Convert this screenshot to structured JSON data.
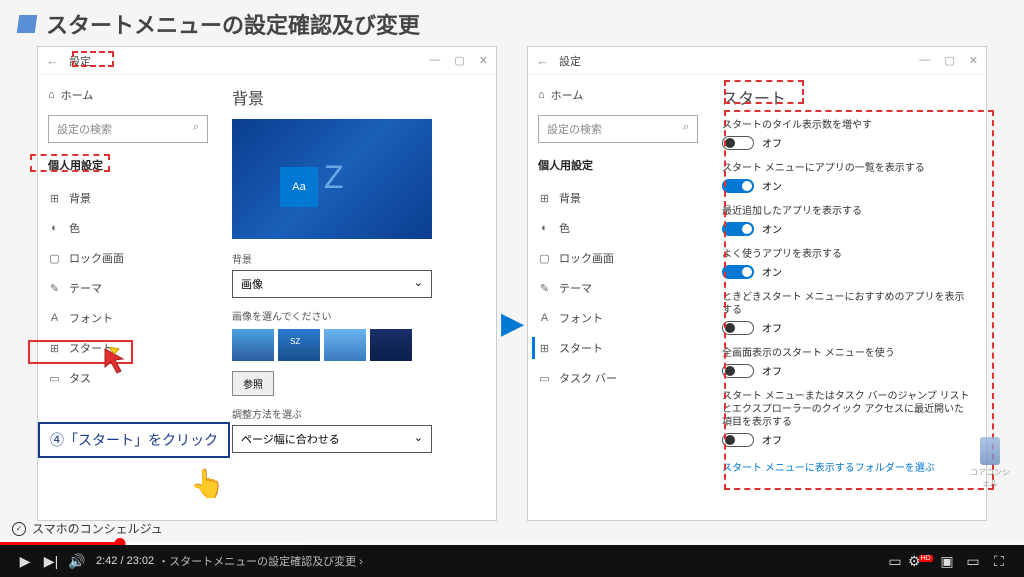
{
  "slide": {
    "title": "スタートメニューの設定確認及び変更",
    "callout_text": "④「スタート」をクリック"
  },
  "left_window": {
    "titlebar": "設定",
    "home": "ホーム",
    "search_placeholder": "設定の検索",
    "category": "個人用設定",
    "items": [
      {
        "icon": "⊞",
        "label": "背景"
      },
      {
        "icon": "◐",
        "label": "色"
      },
      {
        "icon": "▢",
        "label": "ロック画面"
      },
      {
        "icon": "✎",
        "label": "テーマ"
      },
      {
        "icon": "A",
        "label": "フォント"
      },
      {
        "icon": "⊞",
        "label": "スタート"
      },
      {
        "icon": "▭",
        "label": "タス"
      }
    ],
    "pane": {
      "title": "背景",
      "bg_label": "背景",
      "bg_value": "画像",
      "choose_label": "画像を選んでください",
      "browse": "参照",
      "adjust_label": "調整方法を選ぶ",
      "adjust_value": "ページ幅に合わせる"
    }
  },
  "right_window": {
    "titlebar": "設定",
    "home": "ホーム",
    "search_placeholder": "設定の検索",
    "category": "個人用設定",
    "items": [
      {
        "icon": "⊞",
        "label": "背景"
      },
      {
        "icon": "◐",
        "label": "色"
      },
      {
        "icon": "▢",
        "label": "ロック画面"
      },
      {
        "icon": "✎",
        "label": "テーマ"
      },
      {
        "icon": "A",
        "label": "フォント"
      },
      {
        "icon": "⊞",
        "label": "スタート"
      },
      {
        "icon": "▭",
        "label": "タスク バー"
      }
    ],
    "pane": {
      "title": "スタート",
      "toggles": [
        {
          "label": "スタートのタイル表示数を増やす",
          "state": "オフ",
          "on": false
        },
        {
          "label": "スタート メニューにアプリの一覧を表示する",
          "state": "オン",
          "on": true
        },
        {
          "label": "最近追加したアプリを表示する",
          "state": "オン",
          "on": true
        },
        {
          "label": "よく使うアプリを表示する",
          "state": "オン",
          "on": true
        },
        {
          "label": "ときどきスタート メニューにおすすめのアプリを表示する",
          "state": "オフ",
          "on": false
        },
        {
          "label": "全画面表示のスタート メニューを使う",
          "state": "オフ",
          "on": false
        },
        {
          "label": "スタート メニューまたはタスク バーのジャンプ リストとエクスプローラーのクイック アクセスに最近開いた項目を表示する",
          "state": "オフ",
          "on": false
        }
      ],
      "footer_link": "スタート メニューに表示するフォルダーを選ぶ"
    }
  },
  "video": {
    "current": "2:42",
    "total": "23:02",
    "chapter": "・スタートメニューの設定確認及び変更",
    "progress_pct": 11.7,
    "channel": "スマホのコンシェルジュ",
    "watermark": "コアコンシェル"
  },
  "colors": {
    "accent": "#0078d4",
    "highlight": "#e03030",
    "callout_border": "#1a3a8a"
  }
}
